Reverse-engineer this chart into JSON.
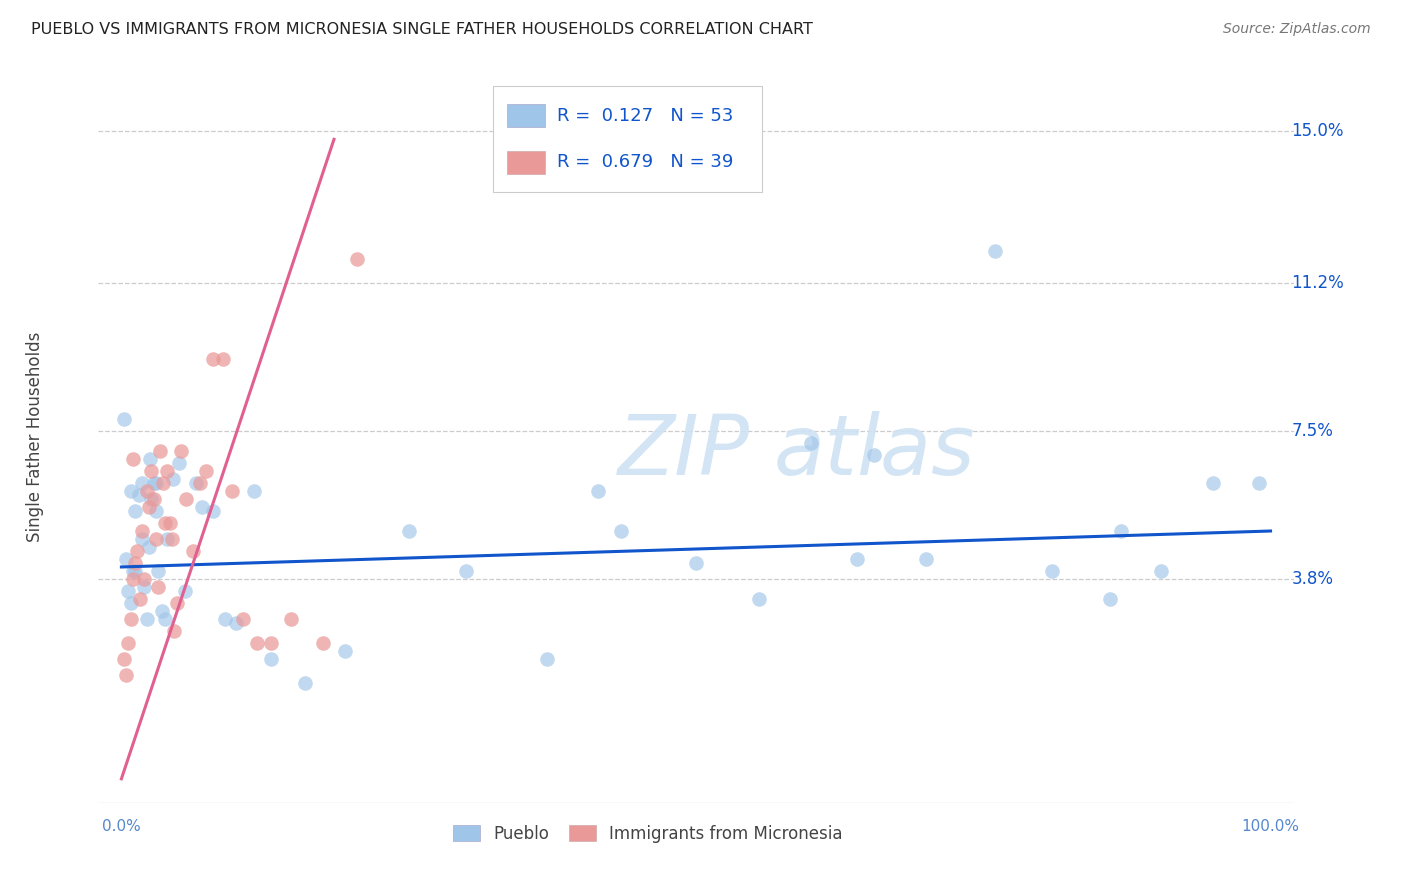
{
  "title": "PUEBLO VS IMMIGRANTS FROM MICRONESIA SINGLE FATHER HOUSEHOLDS CORRELATION CHART",
  "source": "Source: ZipAtlas.com",
  "ylabel": "Single Father Households",
  "ytick_vals": [
    0.038,
    0.075,
    0.112,
    0.15
  ],
  "ytick_labels": [
    "3.8%",
    "7.5%",
    "11.2%",
    "15.0%"
  ],
  "xtick_left": "0.0%",
  "xtick_right": "100.0%",
  "xlim": [
    -0.02,
    1.02
  ],
  "ylim": [
    -0.018,
    0.165
  ],
  "legend1_r": "0.127",
  "legend1_n": "53",
  "legend2_r": "0.679",
  "legend2_n": "39",
  "blue_color": "#9fc5e8",
  "pink_color": "#ea9999",
  "trend_blue": "#1155cc",
  "trend_pink": "#e06090",
  "grid_color": "#cccccc",
  "watermark_color": "#cfe2f3",
  "pueblo_x": [
    0.002,
    0.004,
    0.006,
    0.008,
    0.01,
    0.012,
    0.015,
    0.018,
    0.02,
    0.022,
    0.024,
    0.026,
    0.028,
    0.03,
    0.032,
    0.035,
    0.038,
    0.04,
    0.045,
    0.05,
    0.055,
    0.065,
    0.07,
    0.08,
    0.09,
    0.1,
    0.115,
    0.13,
    0.16,
    0.195,
    0.25,
    0.3,
    0.37,
    0.415,
    0.435,
    0.5,
    0.555,
    0.6,
    0.64,
    0.655,
    0.7,
    0.76,
    0.81,
    0.86,
    0.87,
    0.905,
    0.95,
    0.99,
    0.03,
    0.025,
    0.008,
    0.012,
    0.018
  ],
  "pueblo_y": [
    0.078,
    0.043,
    0.035,
    0.032,
    0.04,
    0.04,
    0.059,
    0.062,
    0.036,
    0.028,
    0.046,
    0.058,
    0.062,
    0.055,
    0.04,
    0.03,
    0.028,
    0.048,
    0.063,
    0.067,
    0.035,
    0.062,
    0.056,
    0.055,
    0.028,
    0.027,
    0.06,
    0.018,
    0.012,
    0.02,
    0.05,
    0.04,
    0.018,
    0.06,
    0.05,
    0.042,
    0.033,
    0.072,
    0.043,
    0.069,
    0.043,
    0.12,
    0.04,
    0.033,
    0.05,
    0.04,
    0.062,
    0.062,
    0.062,
    0.068,
    0.06,
    0.055,
    0.048
  ],
  "micro_x": [
    0.002,
    0.004,
    0.006,
    0.008,
    0.01,
    0.012,
    0.014,
    0.016,
    0.018,
    0.02,
    0.022,
    0.024,
    0.026,
    0.028,
    0.03,
    0.032,
    0.034,
    0.036,
    0.038,
    0.04,
    0.042,
    0.044,
    0.046,
    0.048,
    0.052,
    0.056,
    0.062,
    0.068,
    0.074,
    0.08,
    0.088,
    0.096,
    0.106,
    0.118,
    0.13,
    0.148,
    0.175,
    0.205,
    0.01
  ],
  "micro_y": [
    0.018,
    0.014,
    0.022,
    0.028,
    0.038,
    0.042,
    0.045,
    0.033,
    0.05,
    0.038,
    0.06,
    0.056,
    0.065,
    0.058,
    0.048,
    0.036,
    0.07,
    0.062,
    0.052,
    0.065,
    0.052,
    0.048,
    0.025,
    0.032,
    0.07,
    0.058,
    0.045,
    0.062,
    0.065,
    0.093,
    0.093,
    0.06,
    0.028,
    0.022,
    0.022,
    0.028,
    0.022,
    0.118,
    0.068
  ],
  "blue_trend": [
    0.0,
    1.0,
    0.041,
    0.05
  ],
  "pink_trend_x0": 0.0,
  "pink_trend_x1": 0.185,
  "pink_trend_y0": -0.012,
  "pink_trend_y1": 0.148
}
